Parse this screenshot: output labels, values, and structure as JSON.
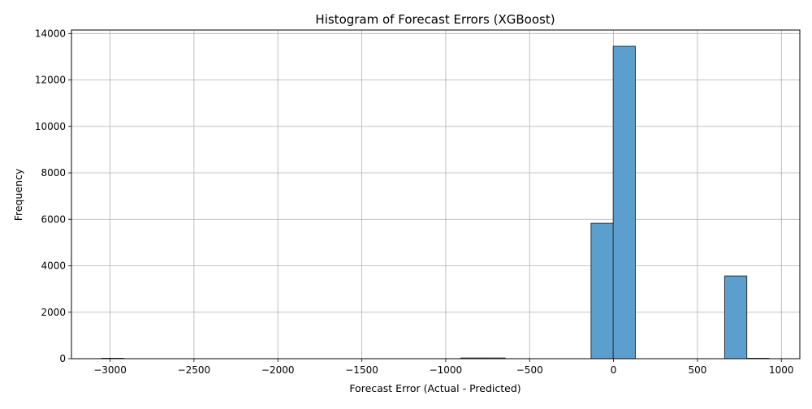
{
  "chart_data": {
    "type": "bar",
    "title": "Histogram of Forecast Errors (XGBoost)",
    "xlabel": "Forecast Error (Actual - Predicted)",
    "ylabel": "Frequency",
    "xlim": [
      -3230,
      1110
    ],
    "ylim": [
      0,
      14150
    ],
    "xticks": [
      -3000,
      -2500,
      -2000,
      -1500,
      -1000,
      -500,
      0,
      500,
      1000
    ],
    "yticks": [
      0,
      2000,
      4000,
      6000,
      8000,
      10000,
      12000,
      14000
    ],
    "grid": true,
    "bar_color": "#5B9FCF",
    "edge_color": "#333333",
    "bins": [
      {
        "x0": -3050,
        "x1": -2918,
        "count": 0
      },
      {
        "x0": -910,
        "x1": -778,
        "count": 30
      },
      {
        "x0": -778,
        "x1": -646,
        "count": 30
      },
      {
        "x0": -134,
        "x1": -2,
        "count": 5830
      },
      {
        "x0": -2,
        "x1": 130,
        "count": 13450
      },
      {
        "x0": 662,
        "x1": 794,
        "count": 3560
      },
      {
        "x0": 794,
        "x1": 926,
        "count": 0
      }
    ]
  }
}
